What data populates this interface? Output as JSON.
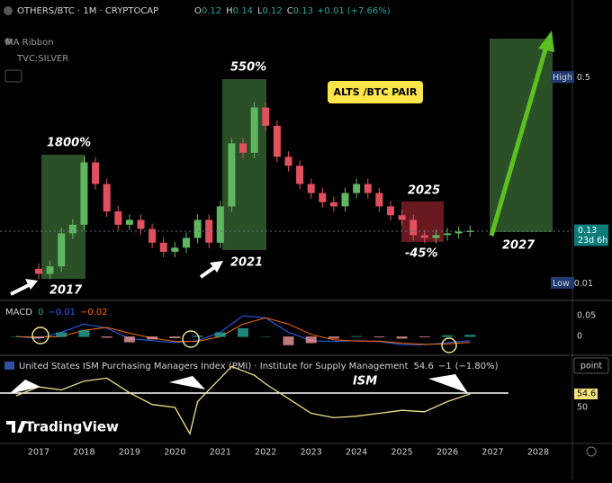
{
  "header": {
    "symbol": "OTHERS/BTC · 1M · CRYPTOCAP",
    "ohlc": [
      {
        "label": "O",
        "value": 0.12
      },
      {
        "label": "H",
        "value": 0.14
      },
      {
        "label": "L",
        "value": 0.12
      },
      {
        "label": "C",
        "value": 0.13
      }
    ],
    "change": "+0.01",
    "change_pct": "(+7.66%)",
    "indicators": [
      "MA Ribbon",
      "TVC:SILVER"
    ]
  },
  "price_chart": {
    "log_scale": true,
    "ylim": [
      0.071,
      0.72
    ],
    "x": [
      2016.75,
      2017.0,
      2017.25,
      2017.5,
      2017.75,
      2018.0,
      2018.25,
      2018.5,
      2018.75,
      2019.0,
      2019.25,
      2019.5,
      2019.75,
      2020.0,
      2020.25,
      2020.5,
      2020.75,
      2021.0,
      2021.25,
      2021.5,
      2021.75,
      2022.0,
      2022.25,
      2022.5,
      2022.75,
      2023.0,
      2023.25,
      2023.5,
      2023.75,
      2024.0,
      2024.25,
      2024.5,
      2024.75,
      2025.0,
      2025.25,
      2025.5,
      2025.75,
      2026.0,
      2026.25,
      2026.5
    ],
    "values": [
      0.093,
      0.089,
      0.095,
      0.127,
      0.137,
      0.237,
      0.196,
      0.154,
      0.137,
      0.143,
      0.132,
      0.117,
      0.108,
      0.112,
      0.122,
      0.143,
      0.117,
      0.161,
      0.28,
      0.258,
      0.384,
      0.327,
      0.249,
      0.23,
      0.196,
      0.181,
      0.167,
      0.161,
      0.181,
      0.196,
      0.181,
      0.161,
      0.149,
      0.143,
      0.125,
      0.122,
      0.125,
      0.127,
      0.129,
      0.13
    ],
    "up_color": "#5fb860",
    "down_color": "#e0505e",
    "high": {
      "label": "High",
      "value": 0.5
    },
    "last": {
      "value": 0.13,
      "countdown": "23d 6h"
    },
    "low": {
      "label": "Low",
      "value": 0.01
    }
  },
  "annotations": {
    "gain_2017": "1800%",
    "gain_2021": "550%",
    "pair": "ALTS /BTC PAIR",
    "year_2017": "2017",
    "year_2021": "2021",
    "year_2025": "2025",
    "drop_2025": "-45%",
    "year_2027": "2027",
    "ism": "ISM"
  },
  "macd": {
    "title": "MACD",
    "legend": [
      0,
      "−0.01",
      "−0.02"
    ],
    "ylim": [
      -0.041,
      0.074
    ],
    "yticks": [
      0.05,
      0
    ],
    "x": [
      2016.5,
      2017.0,
      2017.5,
      2018.0,
      2018.5,
      2019.0,
      2019.5,
      2020.0,
      2020.5,
      2021.0,
      2021.5,
      2022.0,
      2022.5,
      2023.0,
      2023.5,
      2024.0,
      2024.5,
      2025.0,
      2025.5,
      2026.0,
      2026.5
    ],
    "series": [
      {
        "name": "MACD",
        "color": "#2962ff",
        "values": [
          0.0,
          -0.005,
          0.01,
          0.03,
          0.02,
          -0.005,
          -0.01,
          -0.015,
          -0.01,
          0.01,
          0.05,
          0.045,
          0.01,
          -0.01,
          -0.012,
          -0.01,
          -0.012,
          -0.02,
          -0.02,
          -0.015,
          -0.01
        ]
      },
      {
        "name": "Signal",
        "color": "#ff6d00",
        "values": [
          0.0,
          -0.002,
          0.0,
          0.015,
          0.022,
          0.008,
          -0.004,
          -0.012,
          -0.012,
          0.0,
          0.03,
          0.045,
          0.03,
          0.005,
          -0.008,
          -0.011,
          -0.011,
          -0.016,
          -0.019,
          -0.018,
          -0.014
        ]
      }
    ]
  },
  "ism": {
    "title": "United States ISM Purchasing Managers Index (PMI) · Institute for Supply Management",
    "last": 54.6,
    "change": "−1",
    "change_pct": "(−1.80%)",
    "ylim": [
      38,
      66.9
    ],
    "yticks": [
      54.6,
      50
    ],
    "unit": "point",
    "color": "#f0e08a",
    "x": [
      2016.5,
      2017.0,
      2017.5,
      2018.0,
      2018.5,
      2019.0,
      2019.5,
      2020.0,
      2020.33,
      2020.5,
      2021.0,
      2021.25,
      2021.75,
      2022.0,
      2022.5,
      2023.0,
      2023.5,
      2024.0,
      2024.5,
      2025.0,
      2025.5,
      2026.0,
      2026.5
    ],
    "values": [
      54,
      57,
      56,
      59,
      60,
      55,
      51,
      50,
      41,
      52,
      60,
      64,
      61,
      58,
      53,
      48,
      46.5,
      47,
      48,
      49,
      48.5,
      52,
      54.6
    ]
  },
  "x_axis": {
    "ticks": [
      2017,
      2018,
      2019,
      2020,
      2021,
      2022,
      2023,
      2024,
      2025,
      2026,
      2027,
      2028
    ]
  },
  "branding": "TradingView"
}
